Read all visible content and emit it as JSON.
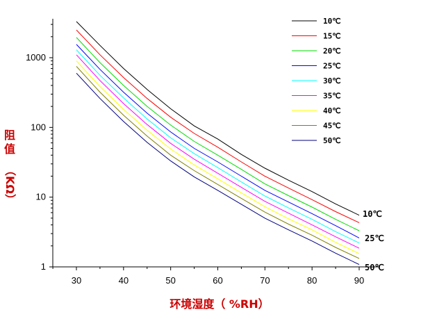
{
  "chart_data": {
    "type": "line",
    "xlabel": "环境湿度（ %RH）",
    "ylabel_chars": [
      "阻",
      "值",
      "（",
      "KΩ",
      "）"
    ],
    "x_ticks": [
      30,
      40,
      50,
      60,
      70,
      80,
      90
    ],
    "x_tick_labels": [
      "30",
      "40",
      "50",
      "60",
      "70",
      "80",
      "90"
    ],
    "y_ticks": [
      1,
      10,
      100,
      1000
    ],
    "y_tick_labels": [
      "1",
      "10",
      "100",
      "1000"
    ],
    "xlim": [
      25,
      92
    ],
    "ylim": [
      1,
      4200
    ],
    "y_scale": "log",
    "legend_position": "top-right",
    "end_labels": [
      {
        "text": "10℃",
        "series": 0
      },
      {
        "text": "25℃",
        "series": 3
      },
      {
        "text": "50℃",
        "series": 8
      }
    ],
    "x": [
      30,
      35,
      40,
      45,
      50,
      55,
      60,
      65,
      70,
      75,
      80,
      85,
      90
    ],
    "series": [
      {
        "name": "10℃",
        "color": "#000000",
        "values": [
          3300,
          1500,
          700,
          350,
          185,
          105,
          68,
          41,
          26,
          17.5,
          12,
          8,
          5.5
        ]
      },
      {
        "name": "15℃",
        "color": "#ff0000",
        "values": [
          2500,
          1100,
          520,
          260,
          140,
          82,
          52,
          32,
          20,
          13.5,
          9.2,
          6.2,
          4.3
        ]
      },
      {
        "name": "20℃",
        "color": "#00dd00",
        "values": [
          1950,
          850,
          400,
          200,
          108,
          63,
          40,
          25,
          15.5,
          10.5,
          7.2,
          4.8,
          3.3
        ]
      },
      {
        "name": "25℃",
        "color": "#0000ff",
        "values": [
          1550,
          680,
          320,
          160,
          86,
          50,
          32,
          20,
          12.5,
          8.5,
          5.8,
          3.9,
          2.6
        ]
      },
      {
        "name": "30℃",
        "color": "#00ffff",
        "values": [
          1300,
          560,
          265,
          132,
          71,
          42,
          26.5,
          16.5,
          10.4,
          7,
          4.8,
          3.2,
          2.2
        ]
      },
      {
        "name": "35℃",
        "color": "#ff00ff",
        "values": [
          1100,
          470,
          220,
          110,
          59,
          35,
          22,
          13.8,
          8.7,
          5.9,
          4,
          2.7,
          1.85
        ]
      },
      {
        "name": "40℃",
        "color": "#ffff00",
        "values": [
          900,
          385,
          182,
          91,
          49,
          29,
          18.3,
          11.5,
          7.3,
          4.9,
          3.4,
          2.25,
          1.55
        ]
      },
      {
        "name": "45℃",
        "color": "#808000",
        "values": [
          750,
          320,
          150,
          75,
          40,
          24,
          15.2,
          9.6,
          6.1,
          4.1,
          2.85,
          1.9,
          1.32
        ]
      },
      {
        "name": "50℃",
        "color": "#000080",
        "values": [
          600,
          260,
          122,
          61,
          33,
          19.5,
          12.5,
          7.9,
          5,
          3.4,
          2.35,
          1.57,
          1.08
        ]
      }
    ]
  }
}
